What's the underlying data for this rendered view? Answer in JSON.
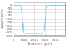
{
  "chart_data": {
    "type": "line",
    "xlabel": "Distance (μm)",
    "ylabel": "Height (nm)",
    "x": [
      0,
      700,
      750,
      800,
      850,
      900,
      950,
      1000,
      1050,
      1100,
      1200,
      1500,
      2000,
      2500,
      2800,
      2900,
      2950,
      3000,
      3050,
      3100,
      3150,
      3200,
      3250,
      3300,
      3350,
      3400,
      3500,
      4000,
      4500,
      5000
    ],
    "values": [
      0,
      0,
      -30,
      -120,
      -260,
      -350,
      -390,
      -400,
      -405,
      -407,
      -408,
      -408,
      -408,
      -408,
      -408,
      -390,
      -340,
      -240,
      -130,
      -50,
      -15,
      -3,
      0,
      0,
      0,
      0,
      0,
      0,
      0,
      0
    ],
    "color": "#6ecff0",
    "xlim": [
      0,
      5000
    ],
    "ylim": [
      -450,
      50
    ],
    "xticks": [
      0,
      1000,
      2000,
      3000,
      4000
    ],
    "yticks": [
      0,
      -50,
      -100,
      -150,
      -200,
      -250,
      -300,
      -350,
      -400,
      -450
    ],
    "grid": true
  }
}
